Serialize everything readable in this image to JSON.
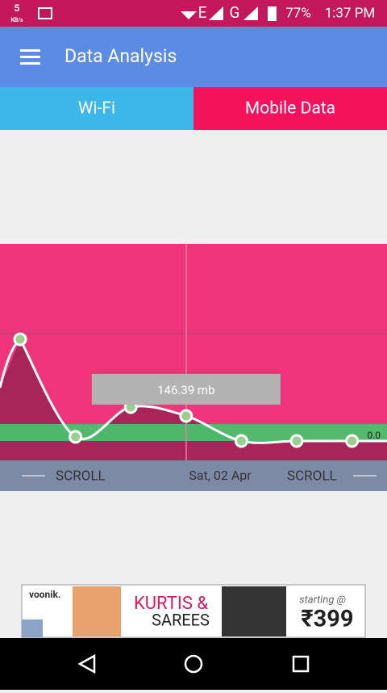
{
  "status_bar": {
    "speed": "5",
    "speed_unit": "KB/s",
    "network_1": "E",
    "network_2": "G",
    "battery": "77%",
    "time": "1:37 PM"
  },
  "app_bar": {
    "title": "Data Analysis"
  },
  "tabs": [
    "Wi-Fi",
    "Mobile Data"
  ],
  "chart_data": {
    "type": "line",
    "values": [
      594,
      24,
      198,
      146.39,
      0,
      0,
      0
    ],
    "value_labels": [
      null,
      null,
      null,
      "146.39 mb",
      null,
      null,
      null
    ],
    "limit_label": "0.0",
    "color": "#ffffff"
  },
  "scroll_bar": {
    "left": "SCROLL",
    "date": "Sat, 02 Apr",
    "right": "SCROLL"
  },
  "ad": {
    "brand": "voonik.",
    "line1": "KURTIS &",
    "line2": "SAREES",
    "offer": "starting @",
    "price": "₹399"
  }
}
